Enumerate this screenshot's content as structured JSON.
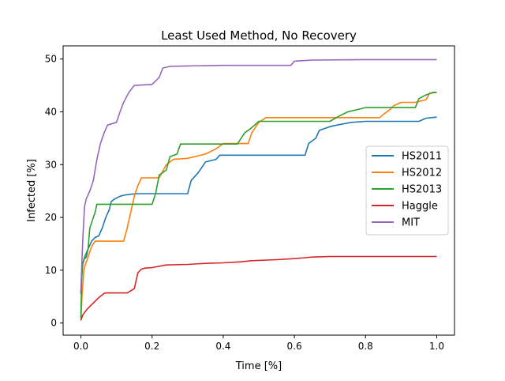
{
  "chart_data": {
    "type": "line",
    "title": "Least Used Method, No Recovery",
    "xlabel": "Time [%]",
    "ylabel": "Infected [%]",
    "xlim": [
      -0.05,
      1.05
    ],
    "ylim": [
      -2.3,
      52.5
    ],
    "xticks": [
      0.0,
      0.2,
      0.4,
      0.6,
      0.8,
      1.0
    ],
    "xtick_labels": [
      "0.0",
      "0.2",
      "0.4",
      "0.6",
      "0.8",
      "1.0"
    ],
    "yticks": [
      0,
      10,
      20,
      30,
      40,
      50
    ],
    "ytick_labels": [
      "0",
      "10",
      "20",
      "30",
      "40",
      "50"
    ],
    "grid": false,
    "legend_position": "center-right",
    "series": [
      {
        "name": "HS2011",
        "color": "#1f77b4",
        "points": [
          [
            0.0,
            5.5
          ],
          [
            0.002,
            9
          ],
          [
            0.004,
            11
          ],
          [
            0.008,
            12
          ],
          [
            0.015,
            12.5
          ],
          [
            0.02,
            14
          ],
          [
            0.03,
            15.5
          ],
          [
            0.04,
            16.2
          ],
          [
            0.05,
            16.5
          ],
          [
            0.06,
            18
          ],
          [
            0.07,
            20
          ],
          [
            0.08,
            21.5
          ],
          [
            0.085,
            23
          ],
          [
            0.095,
            23.5
          ],
          [
            0.11,
            24
          ],
          [
            0.12,
            24.2
          ],
          [
            0.14,
            24.4
          ],
          [
            0.16,
            24.5
          ],
          [
            0.3,
            24.5
          ],
          [
            0.31,
            27
          ],
          [
            0.33,
            28.5
          ],
          [
            0.35,
            30.5
          ],
          [
            0.38,
            31
          ],
          [
            0.39,
            31.8
          ],
          [
            0.6,
            31.8
          ],
          [
            0.63,
            31.8
          ],
          [
            0.64,
            34
          ],
          [
            0.66,
            35
          ],
          [
            0.67,
            36.5
          ],
          [
            0.7,
            37.2
          ],
          [
            0.72,
            37.5
          ],
          [
            0.76,
            38
          ],
          [
            0.8,
            38.2
          ],
          [
            0.95,
            38.2
          ],
          [
            0.97,
            38.8
          ],
          [
            1.0,
            39
          ]
        ]
      },
      {
        "name": "HS2012",
        "color": "#ff7f0e",
        "points": [
          [
            0.0,
            0.5
          ],
          [
            0.003,
            5
          ],
          [
            0.008,
            10
          ],
          [
            0.012,
            11
          ],
          [
            0.02,
            12.5
          ],
          [
            0.03,
            14.5
          ],
          [
            0.04,
            15.5
          ],
          [
            0.12,
            15.5
          ],
          [
            0.13,
            18
          ],
          [
            0.14,
            21
          ],
          [
            0.15,
            24
          ],
          [
            0.16,
            26
          ],
          [
            0.17,
            27.5
          ],
          [
            0.22,
            27.5
          ],
          [
            0.24,
            30
          ],
          [
            0.26,
            31
          ],
          [
            0.3,
            31.2
          ],
          [
            0.35,
            32
          ],
          [
            0.38,
            33
          ],
          [
            0.4,
            34
          ],
          [
            0.47,
            34
          ],
          [
            0.48,
            36
          ],
          [
            0.5,
            38
          ],
          [
            0.52,
            38.9
          ],
          [
            0.84,
            38.9
          ],
          [
            0.85,
            39.5
          ],
          [
            0.87,
            40.5
          ],
          [
            0.88,
            41.2
          ],
          [
            0.9,
            41.8
          ],
          [
            0.94,
            41.8
          ],
          [
            0.97,
            42.3
          ],
          [
            0.98,
            43.5
          ],
          [
            1.0,
            43.7
          ]
        ]
      },
      {
        "name": "HS2013",
        "color": "#2ca02c",
        "points": [
          [
            0.0,
            1
          ],
          [
            0.002,
            8
          ],
          [
            0.005,
            11
          ],
          [
            0.01,
            12.5
          ],
          [
            0.02,
            14
          ],
          [
            0.025,
            18
          ],
          [
            0.03,
            19
          ],
          [
            0.04,
            21
          ],
          [
            0.045,
            22.5
          ],
          [
            0.2,
            22.5
          ],
          [
            0.21,
            24.5
          ],
          [
            0.22,
            28
          ],
          [
            0.24,
            29
          ],
          [
            0.25,
            31.5
          ],
          [
            0.27,
            32
          ],
          [
            0.28,
            33.9
          ],
          [
            0.38,
            33.9
          ],
          [
            0.44,
            33.9
          ],
          [
            0.46,
            36
          ],
          [
            0.48,
            37
          ],
          [
            0.5,
            38.2
          ],
          [
            0.7,
            38.2
          ],
          [
            0.72,
            39
          ],
          [
            0.75,
            40
          ],
          [
            0.8,
            40.8
          ],
          [
            0.9,
            40.8
          ],
          [
            0.94,
            40.8
          ],
          [
            0.95,
            42.5
          ],
          [
            0.97,
            43.2
          ],
          [
            0.99,
            43.7
          ],
          [
            1.0,
            43.7
          ]
        ]
      },
      {
        "name": "Haggle",
        "color": "#d62728",
        "points": [
          [
            0.0,
            0.5
          ],
          [
            0.005,
            1.5
          ],
          [
            0.01,
            2
          ],
          [
            0.02,
            2.8
          ],
          [
            0.035,
            3.8
          ],
          [
            0.05,
            4.8
          ],
          [
            0.065,
            5.6
          ],
          [
            0.07,
            5.7
          ],
          [
            0.13,
            5.7
          ],
          [
            0.15,
            6.5
          ],
          [
            0.16,
            9.5
          ],
          [
            0.17,
            10.2
          ],
          [
            0.18,
            10.4
          ],
          [
            0.2,
            10.5
          ],
          [
            0.24,
            11
          ],
          [
            0.3,
            11.1
          ],
          [
            0.35,
            11.3
          ],
          [
            0.4,
            11.4
          ],
          [
            0.45,
            11.6
          ],
          [
            0.48,
            11.8
          ],
          [
            0.55,
            12
          ],
          [
            0.6,
            12.2
          ],
          [
            0.65,
            12.5
          ],
          [
            0.7,
            12.6
          ],
          [
            1.0,
            12.6
          ]
        ]
      },
      {
        "name": "MIT",
        "color": "#9467bd",
        "points": [
          [
            0.0,
            6
          ],
          [
            0.003,
            12
          ],
          [
            0.006,
            17
          ],
          [
            0.01,
            22
          ],
          [
            0.015,
            23.5
          ],
          [
            0.025,
            25
          ],
          [
            0.035,
            27
          ],
          [
            0.045,
            31
          ],
          [
            0.055,
            34
          ],
          [
            0.065,
            36
          ],
          [
            0.075,
            37.5
          ],
          [
            0.09,
            37.8
          ],
          [
            0.1,
            38
          ],
          [
            0.11,
            40
          ],
          [
            0.12,
            41.8
          ],
          [
            0.135,
            43.7
          ],
          [
            0.15,
            45
          ],
          [
            0.2,
            45.2
          ],
          [
            0.22,
            46.5
          ],
          [
            0.23,
            48.3
          ],
          [
            0.25,
            48.6
          ],
          [
            0.3,
            48.7
          ],
          [
            0.4,
            48.8
          ],
          [
            0.59,
            48.8
          ],
          [
            0.6,
            49.6
          ],
          [
            0.65,
            49.8
          ],
          [
            0.8,
            49.9
          ],
          [
            1.0,
            49.9
          ]
        ]
      }
    ]
  }
}
